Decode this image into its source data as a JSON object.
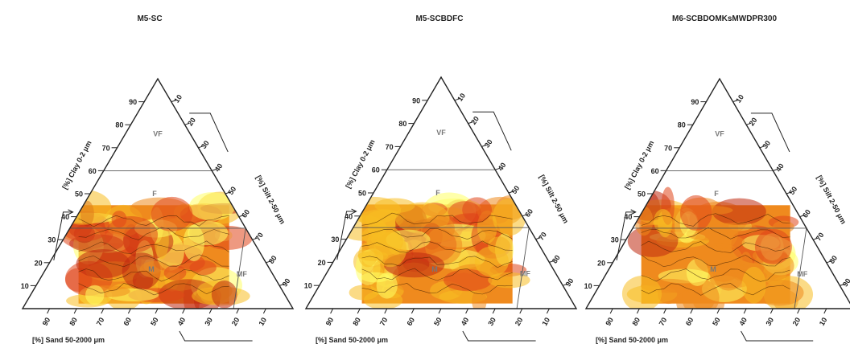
{
  "figure": {
    "panels": [
      {
        "title": "M5-SC"
      },
      {
        "title": "M5-SCBDFC"
      },
      {
        "title": "M6-SCBDOMKsMWDPR300"
      }
    ]
  },
  "chart_data": [
    {
      "type": "heatmap",
      "title": "M5-SC",
      "axes": {
        "clay_label": "[%] Clay 0-2 μm",
        "silt_label": "[%] Silt 2-50 μm",
        "sand_label": "[%] Sand 50-2000 μm",
        "clay_ticks": [
          10,
          20,
          30,
          40,
          50,
          60,
          70,
          80,
          90
        ],
        "silt_ticks": [
          10,
          20,
          30,
          40,
          50,
          60,
          70,
          80,
          90
        ],
        "sand_ticks": [
          90,
          80,
          70,
          60,
          50,
          40,
          30,
          20,
          10
        ]
      },
      "classes": [
        "VF",
        "F",
        "M",
        "MF"
      ],
      "class_boundaries_clay_pct": [
        35,
        60
      ],
      "map_extent_clay_pct": [
        5,
        45
      ],
      "colormap": [
        "#ffff66",
        "#f7be22",
        "#ef8a1e",
        "#e0461a",
        "#c02a10"
      ]
    },
    {
      "type": "heatmap",
      "title": "M5-SCBDFC",
      "axes": {
        "clay_label": "[%] Clay 0-2 μm",
        "silt_label": "[%] Silt 2-50 μm",
        "sand_label": "[%] Sand 50-2000 μm",
        "clay_ticks": [
          10,
          20,
          30,
          40,
          50,
          60,
          70,
          80,
          90
        ],
        "silt_ticks": [
          10,
          20,
          30,
          40,
          50,
          60,
          70,
          80,
          90
        ],
        "sand_ticks": [
          90,
          80,
          70,
          60,
          50,
          40,
          30,
          20,
          10
        ]
      },
      "classes": [
        "VF",
        "F",
        "M",
        "MF"
      ],
      "class_boundaries_clay_pct": [
        35,
        60
      ],
      "map_extent_clay_pct": [
        5,
        45
      ],
      "colormap": [
        "#ffff66",
        "#f7be22",
        "#ef8a1e",
        "#e0461a",
        "#c02a10"
      ]
    },
    {
      "type": "heatmap",
      "title": "M6-SCBDOMKsMWDPR300",
      "axes": {
        "clay_label": "[%] Clay 0-2 μm",
        "silt_label": "[%] Silt 2-50 μm",
        "sand_label": "[%] Sand 50-2000 μm",
        "clay_ticks": [
          10,
          20,
          30,
          40,
          50,
          60,
          70,
          80,
          90
        ],
        "silt_ticks": [
          10,
          20,
          30,
          40,
          50,
          60,
          70,
          80,
          90
        ],
        "sand_ticks": [
          90,
          80,
          70,
          60,
          50,
          40,
          30,
          20,
          10
        ]
      },
      "classes": [
        "VF",
        "F",
        "M",
        "MF"
      ],
      "class_boundaries_clay_pct": [
        35,
        60
      ],
      "map_extent_clay_pct": [
        5,
        45
      ],
      "colormap": [
        "#ffff66",
        "#f7be22",
        "#ef8a1e",
        "#e0461a",
        "#c02a10"
      ]
    }
  ]
}
